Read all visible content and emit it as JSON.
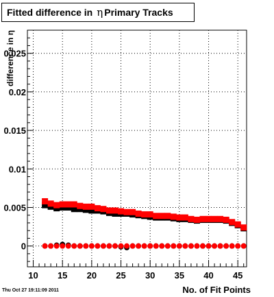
{
  "title": {
    "prefix": "Fitted difference in",
    "symbol": "η",
    "suffix": "Primary Tracks"
  },
  "timestamp": "Thu Oct 27 19:11:09 2011",
  "chart_data": {
    "type": "scatter",
    "title": "Fitted difference in η Primary Tracks",
    "xlabel": "No. of Fit Points",
    "ylabel": "difference in η",
    "xlim": [
      9,
      46.5
    ],
    "ylim": [
      -0.0027,
      0.028
    ],
    "x_ticks": [
      10,
      15,
      20,
      25,
      30,
      35,
      40,
      45
    ],
    "y_ticks": [
      0,
      0.005,
      0.01,
      0.015,
      0.02,
      0.025
    ],
    "y_tick_labels": [
      "0",
      "0.005",
      "0.01",
      "0.015",
      "0.02",
      "0.025"
    ],
    "grid": true,
    "x": [
      12,
      13,
      14,
      15,
      16,
      17,
      18,
      19,
      20,
      21,
      22,
      23,
      24,
      25,
      26,
      27,
      28,
      29,
      30,
      31,
      32,
      33,
      34,
      35,
      36,
      37,
      38,
      39,
      40,
      41,
      42,
      43,
      44,
      45,
      46
    ],
    "series": [
      {
        "color": "#000000",
        "marker": "square",
        "values": [
          0.0053,
          0.0051,
          0.0049,
          0.005,
          0.005,
          0.0048,
          0.0048,
          0.0047,
          0.0046,
          0.0046,
          0.0045,
          0.0043,
          0.0042,
          0.0042,
          0.0042,
          0.0041,
          0.004,
          0.0039,
          0.0038,
          0.0037,
          0.0037,
          0.0037,
          0.0036,
          0.0035,
          0.0035,
          0.0034,
          0.0033,
          0.0034,
          0.0034,
          0.0034,
          0.0034,
          0.0033,
          0.003,
          0.0027,
          0.0023
        ]
      },
      {
        "color": "#ff0000",
        "marker": "square",
        "values": [
          0.0058,
          0.0055,
          0.0053,
          0.0054,
          0.0054,
          0.0054,
          0.0052,
          0.0051,
          0.0051,
          0.0049,
          0.0048,
          0.0046,
          0.0046,
          0.0045,
          0.0044,
          0.0044,
          0.0042,
          0.0041,
          0.0041,
          0.0039,
          0.0039,
          0.0039,
          0.0038,
          0.0037,
          0.0037,
          0.0035,
          0.0034,
          0.0035,
          0.0035,
          0.0035,
          0.0035,
          0.0034,
          0.0031,
          0.0028,
          0.0024
        ]
      },
      {
        "color": "#000000",
        "marker": "circle",
        "values": [
          0.0,
          0.0,
          0.0001,
          0.0002,
          0.0001,
          0.0,
          0.0,
          0.0,
          0.0,
          0.0,
          0.0,
          0.0,
          0.0,
          -0.0001,
          -0.0002,
          0.0,
          0.0,
          0.0,
          0.0,
          0.0,
          0.0,
          0.0,
          0.0,
          0.0,
          0.0,
          0.0,
          0.0,
          0.0,
          0.0,
          0.0,
          0.0,
          0.0,
          0.0,
          0.0,
          0.0
        ]
      },
      {
        "color": "#ff0000",
        "marker": "circle",
        "values": [
          0.0,
          0.0,
          0.0,
          0.0,
          0.0,
          0.0,
          0.0,
          0.0,
          0.0,
          0.0,
          0.0,
          0.0,
          0.0,
          0.0,
          0.0,
          0.0,
          0.0,
          0.0,
          0.0,
          0.0,
          0.0,
          0.0,
          0.0,
          0.0,
          0.0,
          0.0,
          0.0,
          0.0,
          0.0,
          0.0,
          0.0,
          0.0,
          0.0,
          0.0,
          0.0
        ]
      }
    ]
  }
}
